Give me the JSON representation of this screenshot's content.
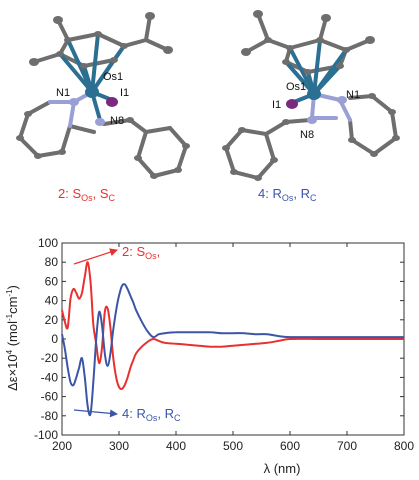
{
  "structures": {
    "left": {
      "caption_main": "2: S",
      "caption_sub1": "Os",
      "caption_mid": ", S",
      "caption_sub2": "C",
      "caption_color": "#e8312f",
      "labels": {
        "metal": "Os1",
        "halide": "I1",
        "n_pyridine": "N1",
        "n_imine": "N8"
      }
    },
    "right": {
      "caption_main": "4: R",
      "caption_sub1": "Os",
      "caption_mid": ", R",
      "caption_sub2": "C",
      "caption_color": "#3b56a6",
      "labels": {
        "metal": "Os1",
        "halide": "I1",
        "n_pyridine": "N1",
        "n_imine": "N8"
      }
    },
    "colors": {
      "carbon": "#6e6e6e",
      "osmium": "#2b6f93",
      "iodine": "#7a2a7e",
      "nitrogen": "#9aa0d6"
    }
  },
  "chart_data": {
    "type": "line",
    "xlabel_symbol": "λ",
    "xlabel_unit": " (nm)",
    "ylabel_main": "Δε×10",
    "ylabel_exp": "4",
    "ylabel_unit1": " (mol",
    "ylabel_exp2": "-1",
    "ylabel_unit2": "cm",
    "ylabel_exp3": "-1",
    "ylabel_close": ")",
    "xlim": [
      200,
      800
    ],
    "ylim": [
      -100,
      100
    ],
    "xticks": [
      200,
      300,
      400,
      500,
      600,
      700,
      800
    ],
    "yticks": [
      100,
      80,
      60,
      40,
      20,
      0,
      -20,
      -40,
      -60,
      -80,
      -100
    ],
    "annotations": [
      {
        "main": "2: S",
        "sub": "Os",
        "tail": ",",
        "color": "#e8312f"
      },
      {
        "main": "4: R",
        "sub": "Os",
        "mid": ", R",
        "sub2": "C",
        "color": "#3b56a6"
      }
    ],
    "series": [
      {
        "color": "#e8312f",
        "x": [
          200,
          205,
          210,
          215,
          220,
          225,
          230,
          235,
          240,
          245,
          250,
          255,
          260,
          265,
          270,
          275,
          280,
          285,
          290,
          295,
          300,
          305,
          310,
          315,
          320,
          325,
          330,
          340,
          350,
          360,
          370,
          380,
          400,
          420,
          440,
          460,
          480,
          500,
          520,
          540,
          560,
          580,
          600,
          650,
          700,
          750,
          800
        ],
        "y": [
          30,
          18,
          12,
          42,
          52,
          48,
          42,
          48,
          65,
          80,
          60,
          15,
          -5,
          -25,
          -10,
          28,
          32,
          12,
          -20,
          -40,
          -50,
          -52,
          -48,
          -40,
          -30,
          -22,
          -15,
          -8,
          -3,
          0,
          -2,
          -4,
          -5,
          -6,
          -7,
          -8,
          -8,
          -7,
          -6,
          -5,
          -4,
          -2,
          0,
          0,
          0,
          0,
          0
        ]
      },
      {
        "color": "#3b56a6",
        "x": [
          200,
          205,
          210,
          215,
          220,
          225,
          230,
          235,
          240,
          245,
          250,
          255,
          260,
          265,
          270,
          275,
          280,
          285,
          290,
          295,
          300,
          305,
          310,
          315,
          320,
          325,
          330,
          340,
          350,
          360,
          370,
          380,
          400,
          420,
          440,
          460,
          480,
          500,
          520,
          540,
          560,
          580,
          600,
          650,
          700,
          750,
          800
        ],
        "y": [
          5,
          -10,
          -30,
          -45,
          -48,
          -40,
          -30,
          -20,
          -40,
          -70,
          -78,
          -45,
          0,
          28,
          15,
          -15,
          -28,
          -15,
          10,
          30,
          45,
          55,
          57,
          52,
          45,
          38,
          30,
          18,
          8,
          2,
          5,
          6,
          7,
          7,
          7,
          7,
          6,
          6,
          6,
          5,
          5,
          3,
          2,
          2,
          2,
          2,
          2
        ]
      }
    ]
  }
}
